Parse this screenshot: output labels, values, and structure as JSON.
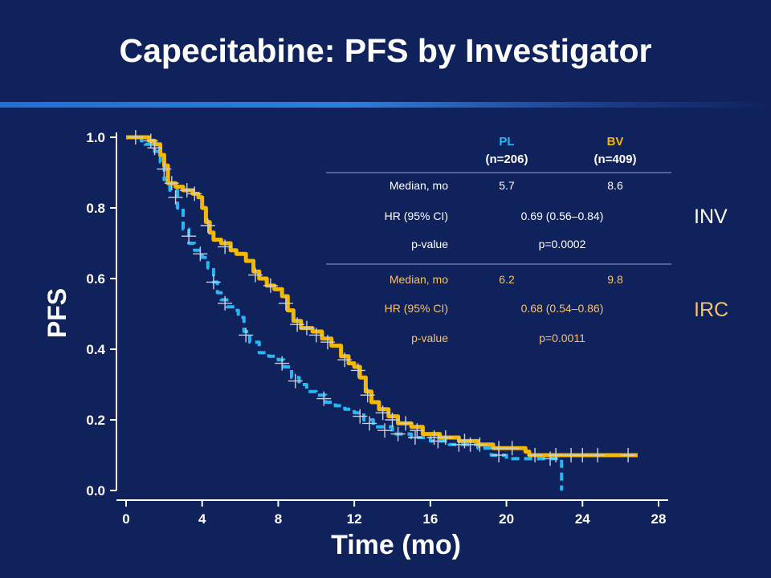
{
  "title": "Capecitabine:  PFS by Investigator",
  "colors": {
    "background": "#10225c",
    "pl": "#29b6f6",
    "bv": "#f5b800",
    "inv_text": "#ffffff",
    "irc_text": "#f5c26b"
  },
  "chart_data": {
    "type": "line",
    "xlabel": "Time (mo)",
    "ylabel": "PFS",
    "xlim": [
      0,
      28
    ],
    "ylim": [
      0,
      1.0
    ],
    "x_ticks": [
      "0",
      "4",
      "8",
      "12",
      "16",
      "20",
      "24",
      "28"
    ],
    "y_ticks": [
      "0.0",
      "0.2",
      "0.4",
      "0.6",
      "0.8",
      "1.0"
    ],
    "grid": false,
    "series": [
      {
        "name": "PL",
        "style": "dashed",
        "points": [
          [
            0,
            1.0
          ],
          [
            0.8,
            0.99
          ],
          [
            1.0,
            0.98
          ],
          [
            1.5,
            0.96
          ],
          [
            1.8,
            0.93
          ],
          [
            2.0,
            0.88
          ],
          [
            2.3,
            0.85
          ],
          [
            2.7,
            0.8
          ],
          [
            3.0,
            0.74
          ],
          [
            3.3,
            0.7
          ],
          [
            3.6,
            0.68
          ],
          [
            4.0,
            0.66
          ],
          [
            4.3,
            0.63
          ],
          [
            4.6,
            0.59
          ],
          [
            4.8,
            0.56
          ],
          [
            5.0,
            0.54
          ],
          [
            5.3,
            0.52
          ],
          [
            5.7,
            0.51
          ],
          [
            5.9,
            0.49
          ],
          [
            6.2,
            0.45
          ],
          [
            6.5,
            0.42
          ],
          [
            7.0,
            0.39
          ],
          [
            7.5,
            0.38
          ],
          [
            8.0,
            0.37
          ],
          [
            8.3,
            0.35
          ],
          [
            8.7,
            0.32
          ],
          [
            9.1,
            0.3
          ],
          [
            9.5,
            0.28
          ],
          [
            10.0,
            0.27
          ],
          [
            10.5,
            0.25
          ],
          [
            11.0,
            0.24
          ],
          [
            11.5,
            0.23
          ],
          [
            12.0,
            0.22
          ],
          [
            12.5,
            0.2
          ],
          [
            13.0,
            0.18
          ],
          [
            14.0,
            0.16
          ],
          [
            15.0,
            0.15
          ],
          [
            16.0,
            0.14
          ],
          [
            17.0,
            0.13
          ],
          [
            18.5,
            0.12
          ],
          [
            19.2,
            0.1
          ],
          [
            20.0,
            0.09
          ],
          [
            21.0,
            0.09
          ],
          [
            22.0,
            0.09
          ],
          [
            22.9,
            0.09
          ],
          [
            22.9,
            0.0
          ]
        ]
      },
      {
        "name": "BV",
        "style": "solid",
        "points": [
          [
            0,
            1.0
          ],
          [
            1.2,
            0.99
          ],
          [
            1.5,
            0.98
          ],
          [
            1.8,
            0.95
          ],
          [
            2.0,
            0.92
          ],
          [
            2.2,
            0.87
          ],
          [
            2.6,
            0.86
          ],
          [
            3.0,
            0.85
          ],
          [
            3.5,
            0.84
          ],
          [
            3.8,
            0.83
          ],
          [
            4.0,
            0.8
          ],
          [
            4.2,
            0.76
          ],
          [
            4.4,
            0.73
          ],
          [
            4.6,
            0.71
          ],
          [
            5.0,
            0.7
          ],
          [
            5.5,
            0.68
          ],
          [
            5.8,
            0.67
          ],
          [
            6.1,
            0.67
          ],
          [
            6.3,
            0.65
          ],
          [
            6.7,
            0.62
          ],
          [
            7.0,
            0.6
          ],
          [
            7.4,
            0.58
          ],
          [
            7.8,
            0.57
          ],
          [
            8.0,
            0.57
          ],
          [
            8.2,
            0.55
          ],
          [
            8.5,
            0.51
          ],
          [
            8.8,
            0.48
          ],
          [
            9.2,
            0.46
          ],
          [
            9.8,
            0.45
          ],
          [
            10.3,
            0.43
          ],
          [
            10.8,
            0.41
          ],
          [
            11.3,
            0.38
          ],
          [
            11.7,
            0.36
          ],
          [
            12.0,
            0.35
          ],
          [
            12.3,
            0.32
          ],
          [
            12.6,
            0.28
          ],
          [
            12.9,
            0.25
          ],
          [
            13.3,
            0.23
          ],
          [
            13.8,
            0.21
          ],
          [
            14.3,
            0.19
          ],
          [
            15.0,
            0.18
          ],
          [
            15.6,
            0.16
          ],
          [
            16.5,
            0.15
          ],
          [
            17.5,
            0.14
          ],
          [
            18.5,
            0.13
          ],
          [
            19.3,
            0.12
          ],
          [
            20.0,
            0.12
          ],
          [
            21.0,
            0.11
          ],
          [
            21.2,
            0.1
          ],
          [
            22.0,
            0.1
          ],
          [
            23.0,
            0.1
          ],
          [
            24.5,
            0.1
          ],
          [
            26.9,
            0.1
          ]
        ]
      }
    ],
    "censor_marks": {
      "PL": [
        [
          1.5,
          0.97
        ],
        [
          2.0,
          0.91
        ],
        [
          2.6,
          0.83
        ],
        [
          3.3,
          0.72
        ],
        [
          3.9,
          0.67
        ],
        [
          4.6,
          0.59
        ],
        [
          5.2,
          0.53
        ],
        [
          6.3,
          0.44
        ],
        [
          8.2,
          0.36
        ],
        [
          8.9,
          0.31
        ],
        [
          10.4,
          0.26
        ],
        [
          12.3,
          0.21
        ],
        [
          12.8,
          0.19
        ],
        [
          13.6,
          0.17
        ],
        [
          14.3,
          0.16
        ],
        [
          15.2,
          0.15
        ],
        [
          16.4,
          0.14
        ],
        [
          17.5,
          0.13
        ],
        [
          18.1,
          0.13
        ],
        [
          19.6,
          0.1
        ],
        [
          22.3,
          0.09
        ]
      ],
      "BV": [
        [
          0.5,
          1.0
        ],
        [
          1.3,
          0.99
        ],
        [
          2.4,
          0.87
        ],
        [
          3.2,
          0.85
        ],
        [
          3.6,
          0.84
        ],
        [
          4.3,
          0.75
        ],
        [
          5.2,
          0.69
        ],
        [
          6.8,
          0.61
        ],
        [
          7.6,
          0.58
        ],
        [
          8.4,
          0.53
        ],
        [
          9.0,
          0.47
        ],
        [
          9.5,
          0.46
        ],
        [
          10.0,
          0.44
        ],
        [
          10.6,
          0.42
        ],
        [
          11.5,
          0.37
        ],
        [
          12.2,
          0.34
        ],
        [
          12.7,
          0.27
        ],
        [
          13.5,
          0.22
        ],
        [
          14.0,
          0.2
        ],
        [
          14.7,
          0.19
        ],
        [
          15.3,
          0.17
        ],
        [
          16.2,
          0.15
        ],
        [
          16.8,
          0.15
        ],
        [
          17.8,
          0.14
        ],
        [
          18.6,
          0.13
        ],
        [
          19.6,
          0.12
        ],
        [
          20.3,
          0.12
        ],
        [
          21.5,
          0.1
        ],
        [
          22.6,
          0.1
        ],
        [
          23.4,
          0.1
        ],
        [
          24.0,
          0.1
        ],
        [
          24.8,
          0.1
        ],
        [
          26.4,
          0.1
        ]
      ]
    }
  },
  "table": {
    "col1_name": "PL",
    "col1_n": "(n=206)",
    "col2_name": "BV",
    "col2_n": "(n=409)",
    "inv": {
      "label": "INV",
      "median_label": "Median, mo",
      "median_pl": "5.7",
      "median_bv": "8.6",
      "hr_label": "HR (95% CI)",
      "hr_value": "0.69 (0.56–0.84)",
      "p_label": "p-value",
      "p_value": "p=0.0002"
    },
    "irc": {
      "label": "IRC",
      "median_label": "Median, mo",
      "median_pl": "6.2",
      "median_bv": "9.8",
      "hr_label": "HR (95% CI)",
      "hr_value": "0.68 (0.54–0.86)",
      "p_label": "p-value",
      "p_value": "p=0.0011"
    }
  }
}
